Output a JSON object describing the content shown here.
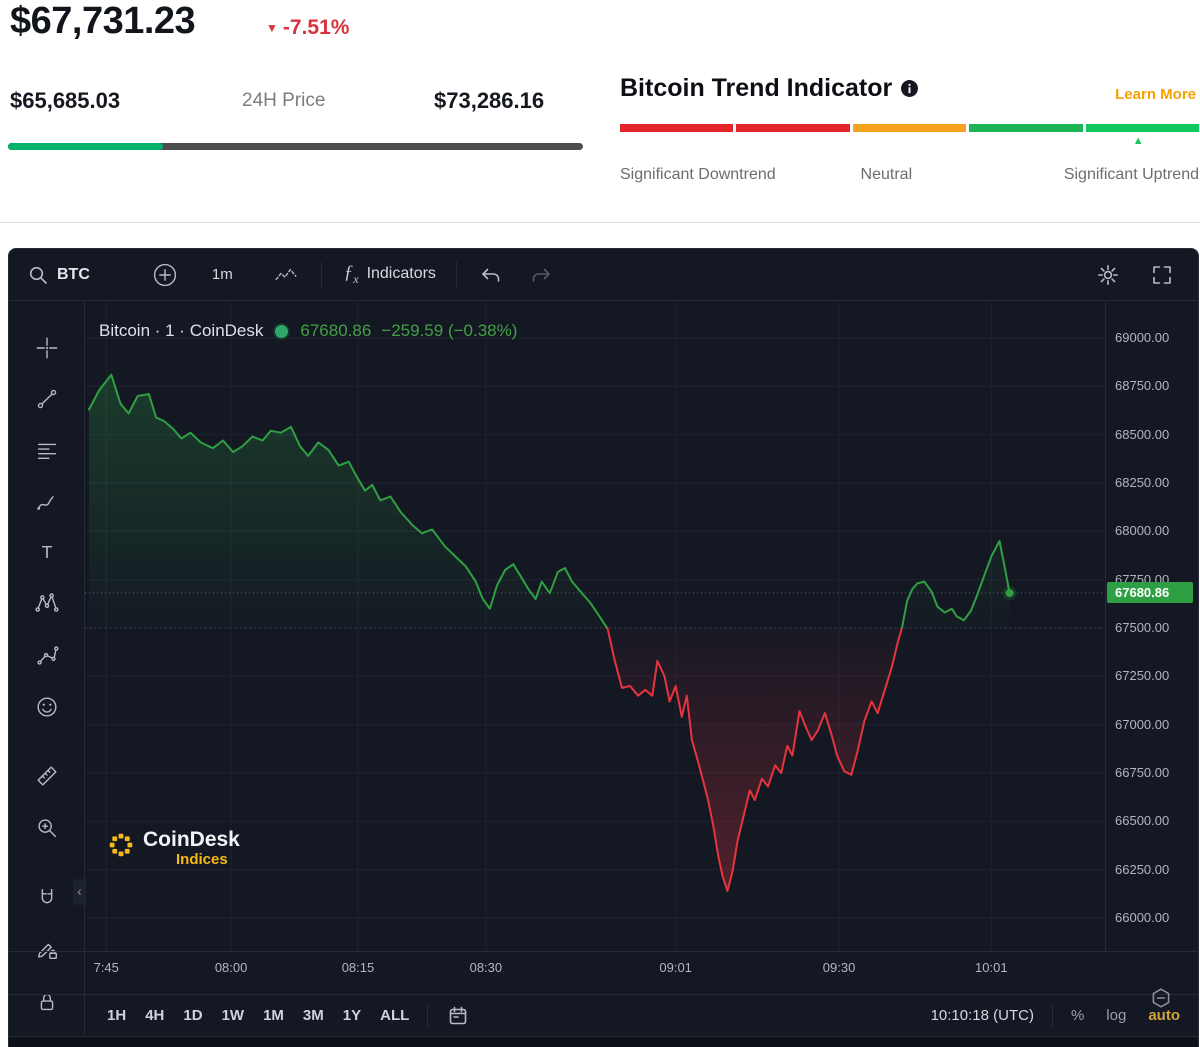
{
  "header": {
    "price": "$67,731.23",
    "change_pct": "-7.51%",
    "low": "$65,685.03",
    "range_label": "24H Price",
    "high": "$73,286.16",
    "range_fill_pct": 27
  },
  "trend": {
    "title": "Bitcoin Trend Indicator",
    "learn_more": "Learn More",
    "segments": [
      "#e3242b",
      "#e3242b",
      "#f6a321",
      "#1cb454",
      "#12c75b"
    ],
    "marker_pct": 89.5,
    "label_down": "Significant Downtrend",
    "label_neutral": "Neutral",
    "label_up": "Significant Uptrend"
  },
  "toolbar": {
    "symbol": "BTC",
    "interval": "1m",
    "indicators_label": "Indicators",
    "fx": "ƒ",
    "fx_sub": "x"
  },
  "legend": {
    "title": "Bitcoin · 1 · CoinDesk",
    "price": "67680.86",
    "change": "−259.59 (−0.38%)"
  },
  "watermark": {
    "line1": "CoinDesk",
    "line2": "Indices"
  },
  "bottom": {
    "ranges": [
      "1H",
      "4H",
      "1D",
      "1W",
      "1M",
      "3M",
      "1Y",
      "ALL"
    ],
    "clock": "10:10:18 (UTC)",
    "percent": "%",
    "log": "log",
    "auto": "auto"
  },
  "colors": {
    "accent_red": "#d8323c",
    "range_green": "#00b26b",
    "gold": "#f5a100",
    "auto_gold": "#d1a33c",
    "chart_up": "#2ea043",
    "chart_down": "#e5353e",
    "legend_green": "#43a047",
    "watermark_yellow": "#f7b915",
    "legend_dot": "#2fa86d",
    "marker_green": "#12c75b"
  },
  "icons": {
    "change_arrow_glyph": "▼",
    "marker_glyph": "▲",
    "collapse_glyph": "‹",
    "toolbar": [
      "search",
      "plus-circle",
      "chart-style",
      "fx",
      "undo",
      "redo",
      "settings-gear",
      "fullscreen"
    ],
    "tools": [
      "crosshair",
      "trend-line",
      "horizontal-lines",
      "brush",
      "text",
      "xabcd-pattern",
      "forecast",
      "emoji",
      "ruler",
      "zoom",
      "magnet",
      "edit-lock",
      "lock"
    ]
  },
  "chart_data": {
    "type": "area",
    "title": "Bitcoin · 1 · CoinDesk",
    "interval": "1m",
    "baseline": 67500,
    "last_price": 67680.86,
    "change": -259.59,
    "change_pct": -0.38,
    "ylim": [
      66000,
      69000
    ],
    "y_ticks": [
      69000,
      68750,
      68500,
      68250,
      68000,
      67750,
      67500,
      67250,
      67000,
      66750,
      66500,
      66250,
      66000
    ],
    "x_labels": [
      {
        "t": "7:45",
        "f": 0.017
      },
      {
        "t": "08:00",
        "f": 0.14
      },
      {
        "t": "08:15",
        "f": 0.265
      },
      {
        "t": "08:30",
        "f": 0.391
      },
      {
        "t": "09:01",
        "f": 0.578
      },
      {
        "t": "09:30",
        "f": 0.739
      },
      {
        "t": "10:01",
        "f": 0.889
      }
    ],
    "points": [
      [
        0.0,
        68630
      ],
      [
        0.01,
        68730
      ],
      [
        0.022,
        68810
      ],
      [
        0.031,
        68660
      ],
      [
        0.039,
        68610
      ],
      [
        0.048,
        68700
      ],
      [
        0.059,
        68710
      ],
      [
        0.066,
        68590
      ],
      [
        0.074,
        68570
      ],
      [
        0.083,
        68530
      ],
      [
        0.091,
        68480
      ],
      [
        0.1,
        68510
      ],
      [
        0.11,
        68460
      ],
      [
        0.122,
        68430
      ],
      [
        0.132,
        68470
      ],
      [
        0.142,
        68410
      ],
      [
        0.151,
        68440
      ],
      [
        0.161,
        68490
      ],
      [
        0.171,
        68470
      ],
      [
        0.179,
        68520
      ],
      [
        0.189,
        68510
      ],
      [
        0.199,
        68540
      ],
      [
        0.208,
        68440
      ],
      [
        0.216,
        68390
      ],
      [
        0.226,
        68460
      ],
      [
        0.236,
        68420
      ],
      [
        0.246,
        68340
      ],
      [
        0.256,
        68360
      ],
      [
        0.263,
        68290
      ],
      [
        0.272,
        68210
      ],
      [
        0.279,
        68240
      ],
      [
        0.287,
        68160
      ],
      [
        0.297,
        68180
      ],
      [
        0.307,
        68100
      ],
      [
        0.319,
        68030
      ],
      [
        0.328,
        67990
      ],
      [
        0.338,
        68010
      ],
      [
        0.351,
        67920
      ],
      [
        0.361,
        67870
      ],
      [
        0.371,
        67820
      ],
      [
        0.381,
        67740
      ],
      [
        0.388,
        67650
      ],
      [
        0.395,
        67600
      ],
      [
        0.402,
        67720
      ],
      [
        0.41,
        67800
      ],
      [
        0.418,
        67830
      ],
      [
        0.425,
        67770
      ],
      [
        0.433,
        67700
      ],
      [
        0.44,
        67650
      ],
      [
        0.446,
        67740
      ],
      [
        0.454,
        67680
      ],
      [
        0.462,
        67790
      ],
      [
        0.469,
        67810
      ],
      [
        0.476,
        67740
      ],
      [
        0.484,
        67690
      ],
      [
        0.494,
        67630
      ],
      [
        0.503,
        67560
      ],
      [
        0.511,
        67495
      ],
      [
        0.518,
        67330
      ],
      [
        0.525,
        67190
      ],
      [
        0.533,
        67200
      ],
      [
        0.541,
        67150
      ],
      [
        0.548,
        67180
      ],
      [
        0.555,
        67150
      ],
      [
        0.56,
        67330
      ],
      [
        0.567,
        67250
      ],
      [
        0.572,
        67120
      ],
      [
        0.578,
        67200
      ],
      [
        0.584,
        67040
      ],
      [
        0.589,
        67150
      ],
      [
        0.594,
        66920
      ],
      [
        0.6,
        66810
      ],
      [
        0.605,
        66710
      ],
      [
        0.61,
        66610
      ],
      [
        0.615,
        66480
      ],
      [
        0.62,
        66320
      ],
      [
        0.624,
        66220
      ],
      [
        0.629,
        66140
      ],
      [
        0.634,
        66240
      ],
      [
        0.639,
        66400
      ],
      [
        0.645,
        66530
      ],
      [
        0.651,
        66660
      ],
      [
        0.656,
        66610
      ],
      [
        0.663,
        66720
      ],
      [
        0.669,
        66680
      ],
      [
        0.676,
        66790
      ],
      [
        0.682,
        66750
      ],
      [
        0.688,
        66890
      ],
      [
        0.693,
        66840
      ],
      [
        0.7,
        67070
      ],
      [
        0.706,
        66990
      ],
      [
        0.712,
        66920
      ],
      [
        0.718,
        66970
      ],
      [
        0.725,
        67060
      ],
      [
        0.732,
        66940
      ],
      [
        0.737,
        66840
      ],
      [
        0.744,
        66760
      ],
      [
        0.751,
        66740
      ],
      [
        0.757,
        66860
      ],
      [
        0.764,
        67020
      ],
      [
        0.771,
        67120
      ],
      [
        0.777,
        67060
      ],
      [
        0.784,
        67180
      ],
      [
        0.791,
        67300
      ],
      [
        0.797,
        67430
      ],
      [
        0.801,
        67500
      ],
      [
        0.806,
        67640
      ],
      [
        0.811,
        67700
      ],
      [
        0.816,
        67730
      ],
      [
        0.823,
        67740
      ],
      [
        0.83,
        67690
      ],
      [
        0.836,
        67610
      ],
      [
        0.843,
        67580
      ],
      [
        0.85,
        67600
      ],
      [
        0.855,
        67560
      ],
      [
        0.862,
        67540
      ],
      [
        0.869,
        67590
      ],
      [
        0.875,
        67670
      ],
      [
        0.882,
        67770
      ],
      [
        0.889,
        67870
      ],
      [
        0.897,
        67950
      ],
      [
        0.902,
        67820
      ],
      [
        0.907,
        67680.86
      ]
    ],
    "colors": {
      "up": "#2ea043",
      "down": "#e5353e"
    }
  }
}
